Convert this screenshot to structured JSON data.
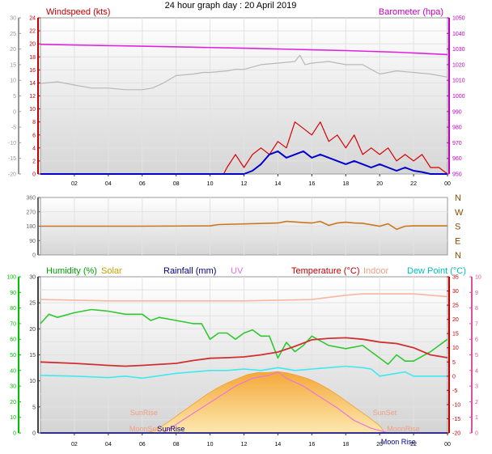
{
  "page": {
    "title": "24 hour graph day : 20 April 2019"
  },
  "x_ticks": [
    "02",
    "04",
    "06",
    "08",
    "10",
    "12",
    "14",
    "16",
    "18",
    "20",
    "22",
    "00"
  ],
  "chart_data": [
    {
      "type": "line",
      "panel": "wind-barometer",
      "xlim": [
        0,
        24
      ],
      "left_label": "Windspeed (kts)",
      "right_label": "Barometer (hpa)",
      "left_axis_outer": {
        "ticks": [
          "30",
          "25",
          "20",
          "15",
          "10",
          "5",
          "0",
          "-5",
          "-10",
          "-15",
          "-20"
        ],
        "ylim": [
          -20,
          30
        ]
      },
      "left_axis_inner": {
        "ticks": [
          "24",
          "22",
          "20",
          "18",
          "16",
          "14",
          "12",
          "10",
          "8",
          "6",
          "4",
          "2",
          "0"
        ],
        "ylim": [
          0,
          24
        ]
      },
      "right_axis": {
        "ticks": [
          "1050",
          "1040",
          "1030",
          "1020",
          "1010",
          "1000",
          "990",
          "980",
          "970",
          "960",
          "950"
        ],
        "ylim": [
          950,
          1050
        ]
      },
      "colors": {
        "windspeed": "#d80000",
        "wind_avg": "#0000cc",
        "barometer": "#e020e0",
        "grey": "#b8b8b8",
        "left_text": "#c00000",
        "right_text": "#c000c0"
      },
      "series": [
        {
          "key": "barometer",
          "axis": "right",
          "x": [
            0,
            3,
            6,
            9,
            12,
            15,
            18,
            21,
            24
          ],
          "y": [
            1033,
            1032.4,
            1031.8,
            1031.2,
            1030.5,
            1029.8,
            1029,
            1028,
            1026.5
          ]
        },
        {
          "key": "grey",
          "axis": "left_outer",
          "x": [
            0,
            1,
            2,
            3,
            4,
            5,
            6,
            6.6,
            7.2,
            8,
            9,
            9.6,
            10,
            11,
            11.5,
            12,
            13,
            14,
            15,
            15.3,
            15.6,
            16,
            17,
            18,
            19,
            20,
            21,
            22,
            23,
            24
          ],
          "y": [
            9,
            9.5,
            8.5,
            7.5,
            7.5,
            7,
            7,
            7.5,
            9,
            11.5,
            12,
            12.5,
            12.5,
            13,
            13.5,
            13.5,
            15,
            15.5,
            16,
            18,
            15,
            15.5,
            16,
            15,
            15,
            12,
            13,
            12.5,
            12,
            11
          ]
        },
        {
          "key": "windspeed",
          "axis": "left_inner",
          "x": [
            0,
            10.8,
            11,
            11.5,
            12,
            12.5,
            13,
            13.5,
            14,
            14.5,
            15,
            15.5,
            16,
            16.5,
            17,
            17.5,
            18,
            18.5,
            19,
            19.5,
            20,
            20.5,
            21,
            21.5,
            22,
            22.5,
            23,
            23.5,
            24
          ],
          "y": [
            0,
            0,
            1,
            3,
            1,
            3,
            4,
            3,
            5,
            4,
            8,
            7,
            6,
            8,
            5,
            6,
            4,
            6,
            3,
            4,
            3,
            4,
            2,
            3,
            2,
            3,
            1,
            1,
            0
          ]
        },
        {
          "key": "wind_avg",
          "axis": "left_inner",
          "x": [
            0,
            12,
            12.5,
            13,
            13.5,
            14,
            14.5,
            15,
            15.5,
            16,
            16.5,
            17,
            17.5,
            18,
            18.5,
            19,
            19.5,
            20,
            20.5,
            21,
            21.5,
            22,
            22.5,
            23,
            24
          ],
          "y": [
            0,
            0,
            0.5,
            1.5,
            3,
            3.5,
            2.5,
            3,
            3.5,
            2.5,
            3,
            2.5,
            2,
            1.5,
            2,
            1.5,
            1,
            1.5,
            1,
            0.5,
            1,
            0.5,
            0.3,
            0,
            0
          ]
        }
      ]
    },
    {
      "type": "line",
      "panel": "wind-direction",
      "xlim": [
        0,
        24
      ],
      "left_axis": {
        "ticks": [
          "360",
          "270",
          "180",
          "90",
          "0"
        ],
        "ylim": [
          0,
          360
        ]
      },
      "compass_labels": [
        "N",
        "W",
        "S",
        "E",
        "N"
      ],
      "colors": {
        "direction": "#c87820",
        "compass": "#8a4a00"
      },
      "series": [
        {
          "key": "direction",
          "x": [
            0,
            6,
            10,
            10.5,
            14,
            14.5,
            16,
            16.5,
            17,
            17.5,
            18,
            18.5,
            19,
            20,
            20.5,
            21,
            21.5,
            22,
            24
          ],
          "y": [
            180,
            180,
            182,
            190,
            200,
            210,
            200,
            210,
            185,
            200,
            205,
            200,
            198,
            180,
            195,
            160,
            180,
            182,
            182
          ]
        }
      ]
    },
    {
      "type": "line",
      "panel": "temperature-humidity",
      "xlim": [
        0,
        24
      ],
      "legend": [
        "Humidity (%)",
        "Solar",
        "Rainfall (mm)",
        "UV",
        "Temperature (°C)",
        "Indoor",
        "Dew Point (°C)"
      ],
      "legend_colors": [
        "#00a000",
        "#c8a000",
        "#000080",
        "#e070e0",
        "#c00000",
        "#f0a080",
        "#00c0c0"
      ],
      "axis_humidity": {
        "ticks": [
          "100",
          "90",
          "80",
          "70",
          "60",
          "50",
          "40",
          "30",
          "20",
          "10",
          "0"
        ],
        "ylim": [
          0,
          100
        ]
      },
      "axis_rain": {
        "ticks": [
          "30",
          "25",
          "20",
          "15",
          "10",
          "5",
          "0"
        ],
        "ylim": [
          0,
          30
        ]
      },
      "axis_temp": {
        "ticks": [
          "35",
          "30",
          "25",
          "20",
          "15",
          "10",
          "5",
          "0",
          "-5",
          "-10",
          "-15",
          "-20"
        ],
        "ylim": [
          -20,
          35
        ]
      },
      "axis_uv": {
        "ticks": [
          "10",
          "9",
          "8",
          "7",
          "6",
          "5",
          "4",
          "3",
          "2",
          "1",
          "0"
        ],
        "ylim": [
          0,
          10
        ]
      },
      "markers": [
        {
          "label": "SunRise",
          "x": 6.1
        },
        {
          "label": "MoonSet",
          "x": 6.1
        },
        {
          "label": "SunRise",
          "x": 7.7
        },
        {
          "label": "SunSet",
          "x": 20.3
        },
        {
          "label": "MoonRise",
          "x": 21.4
        },
        {
          "label": "Moon Rise",
          "x": 21.1
        }
      ],
      "colors": {
        "humidity": "#30c830",
        "solar": "#f8c060",
        "temperature": "#d03030",
        "indoor": "#f8b8a0",
        "dewpoint": "#40e8f0",
        "uv": "#e878d8",
        "rainfall": "#303090",
        "humidity_axis": "#00c000",
        "rain_axis": "#404040",
        "temp_axis": "#c00000",
        "uv_axis": "#e0509a"
      },
      "series": [
        {
          "key": "indoor",
          "axis": "temp",
          "x": [
            0,
            4,
            8,
            12,
            16,
            18,
            19,
            20,
            22,
            24
          ],
          "y": [
            27,
            26.5,
            26.5,
            26.5,
            27,
            28.5,
            29,
            29,
            29,
            28
          ]
        },
        {
          "key": "humidity",
          "axis": "humidity",
          "x": [
            0,
            0.5,
            1,
            2,
            3,
            4,
            5,
            6,
            6.5,
            7,
            8,
            9,
            9.5,
            10,
            10.5,
            11,
            11.5,
            12,
            12.5,
            13,
            13.5,
            14,
            14.5,
            15,
            15.5,
            16,
            17,
            18,
            19,
            20,
            20.5,
            21,
            21.5,
            22,
            23,
            24
          ],
          "y": [
            70,
            76,
            74,
            77,
            79,
            78,
            76,
            76,
            72,
            74,
            72,
            70,
            70,
            60,
            64,
            64,
            60,
            64,
            66,
            62,
            62,
            48,
            58,
            52,
            56,
            62,
            56,
            54,
            56,
            48,
            44,
            50,
            46,
            46,
            52,
            60
          ]
        },
        {
          "key": "temperature",
          "axis": "temp",
          "x": [
            0,
            2,
            4,
            5,
            6,
            8,
            9,
            10,
            11,
            12,
            13,
            14,
            15,
            16,
            17,
            18,
            19,
            20,
            21,
            22,
            23,
            24
          ],
          "y": [
            5,
            4.5,
            3.8,
            3.5,
            3.8,
            4.5,
            5.5,
            6.3,
            6.5,
            6.8,
            7.5,
            8.5,
            10.5,
            12.8,
            13.3,
            13.5,
            13,
            12,
            11.5,
            10,
            7.5,
            6.5
          ]
        },
        {
          "key": "dewpoint",
          "axis": "temp",
          "x": [
            0,
            2,
            4,
            5,
            6,
            8,
            9,
            10,
            11,
            12,
            13,
            14,
            15,
            16,
            17,
            18,
            19,
            19.5,
            20,
            21,
            21.5,
            22,
            23,
            24
          ],
          "y": [
            0.3,
            0,
            -0.5,
            0,
            -0.7,
            1,
            1.5,
            2,
            2,
            2.5,
            2,
            3,
            2,
            2.5,
            3,
            3.5,
            3,
            2.5,
            0,
            1,
            1.5,
            0,
            0,
            0
          ]
        },
        {
          "key": "solar",
          "axis": "rain",
          "x": [
            0,
            6.3,
            6.8,
            7.4,
            8.0,
            8.6,
            9.2,
            9.8,
            10.4,
            11.0,
            11.6,
            12.2,
            12.8,
            13.4,
            14.0,
            14.6,
            15.2,
            15.8,
            16.4,
            17.0,
            17.6,
            18.2,
            18.8,
            19.4,
            20.0,
            20.3,
            24
          ],
          "y": [
            0,
            0,
            0.5,
            1.8,
            3.2,
            4.6,
            6,
            7.4,
            8.6,
            9.6,
            10.4,
            11.2,
            11.6,
            11.6,
            11.8,
            11.5,
            11,
            10.4,
            9.5,
            8.4,
            7.1,
            5.7,
            4.3,
            2.9,
            1.4,
            0,
            0
          ]
        },
        {
          "key": "uv",
          "axis": "uv",
          "x": [
            0,
            7.2,
            7.8,
            8.5,
            9.5,
            10.5,
            11.5,
            12.5,
            13.5,
            14,
            14.5,
            15.5,
            16.5,
            17.5,
            18.5,
            19.5,
            20.5,
            24
          ],
          "y": [
            0,
            0,
            0.4,
            0.9,
            1.6,
            2.3,
            3.0,
            3.5,
            3.7,
            3.9,
            3.5,
            3.0,
            2.3,
            1.6,
            0.8,
            0.3,
            0,
            0
          ]
        },
        {
          "key": "rainfall",
          "axis": "rain",
          "x": [
            0,
            24
          ],
          "y": [
            0,
            0
          ]
        }
      ]
    }
  ]
}
